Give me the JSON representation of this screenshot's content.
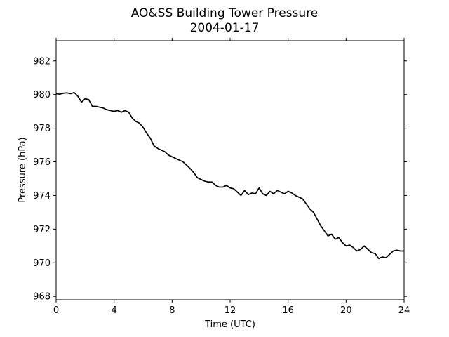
{
  "chart_data": {
    "type": "line",
    "title": "AO&SS Building Tower Pressure",
    "subtitle": "2004-01-17",
    "xlabel": "Time (UTC)",
    "ylabel": "Pressure (hPa)",
    "xlim": [
      0,
      24
    ],
    "ylim": [
      967.8,
      983.2
    ],
    "xticks": [
      0,
      4,
      8,
      12,
      16,
      20,
      24
    ],
    "yticks": [
      968,
      970,
      972,
      974,
      976,
      978,
      980,
      982
    ],
    "grid": false,
    "legend": "none",
    "line_color": "#000000",
    "x": [
      0,
      0.25,
      0.5,
      0.75,
      1,
      1.25,
      1.5,
      1.75,
      2,
      2.25,
      2.5,
      2.75,
      3,
      3.25,
      3.5,
      3.75,
      4,
      4.25,
      4.5,
      4.75,
      5,
      5.25,
      5.5,
      5.75,
      6,
      6.25,
      6.5,
      6.75,
      7,
      7.25,
      7.5,
      7.75,
      8,
      8.25,
      8.5,
      8.75,
      9,
      9.25,
      9.5,
      9.75,
      10,
      10.25,
      10.5,
      10.75,
      11,
      11.25,
      11.5,
      11.75,
      12,
      12.25,
      12.5,
      12.75,
      13,
      13.25,
      13.5,
      13.75,
      14,
      14.25,
      14.5,
      14.75,
      15,
      15.25,
      15.5,
      15.75,
      16,
      16.25,
      16.5,
      16.75,
      17,
      17.25,
      17.5,
      17.75,
      18,
      18.25,
      18.5,
      18.75,
      19,
      19.25,
      19.5,
      19.75,
      20,
      20.25,
      20.5,
      20.75,
      21,
      21.25,
      21.5,
      21.75,
      22,
      22.25,
      22.5,
      22.75,
      23,
      23.25,
      23.5,
      23.75,
      24
    ],
    "y": [
      980.05,
      980.02,
      980.08,
      980.1,
      980.05,
      980.12,
      979.9,
      979.55,
      979.75,
      979.7,
      979.3,
      979.3,
      979.25,
      979.2,
      979.1,
      979.05,
      979.0,
      979.05,
      978.95,
      979.05,
      978.95,
      978.6,
      978.4,
      978.3,
      978.05,
      977.7,
      977.4,
      976.95,
      976.8,
      976.7,
      976.6,
      976.4,
      976.3,
      976.2,
      976.1,
      976.0,
      975.8,
      975.6,
      975.35,
      975.05,
      974.95,
      974.85,
      974.8,
      974.8,
      974.6,
      974.5,
      974.5,
      974.6,
      974.45,
      974.4,
      974.2,
      974.0,
      974.3,
      974.05,
      974.15,
      974.1,
      974.45,
      974.1,
      974.0,
      974.25,
      974.1,
      974.3,
      974.2,
      974.1,
      974.25,
      974.15,
      974.0,
      973.9,
      973.8,
      973.5,
      973.2,
      973.0,
      972.6,
      972.2,
      971.9,
      971.6,
      971.7,
      971.4,
      971.5,
      971.2,
      971.0,
      971.05,
      970.9,
      970.7,
      970.8,
      971.0,
      970.8,
      970.6,
      970.55,
      970.25,
      970.35,
      970.3,
      970.5,
      970.7,
      970.75,
      970.7,
      970.7
    ]
  }
}
